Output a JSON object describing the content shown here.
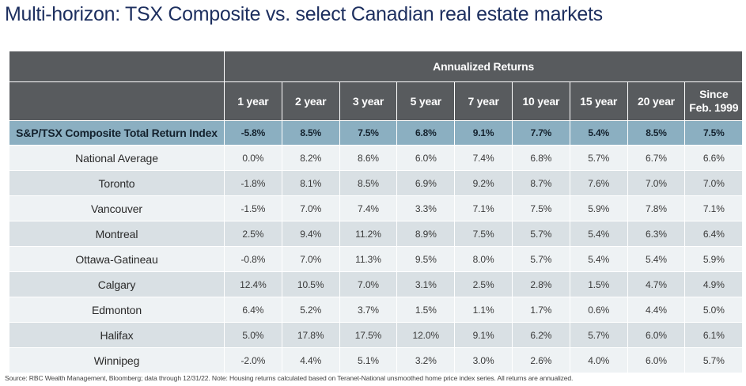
{
  "title": "Multi-horizon: TSX Composite vs. select Canadian real estate markets",
  "table": {
    "group_header": "Annualized Returns",
    "periods": [
      "1 year",
      "2 year",
      "3 year",
      "5 year",
      "7 year",
      "10 year",
      "15 year",
      "20 year",
      "Since Feb. 1999"
    ],
    "period_lines": [
      [
        "1 year"
      ],
      [
        "2 year"
      ],
      [
        "3 year"
      ],
      [
        "5 year"
      ],
      [
        "7 year"
      ],
      [
        "10 year"
      ],
      [
        "15 year"
      ],
      [
        "20 year"
      ],
      [
        "Since",
        "Feb. 1999"
      ]
    ],
    "index_row": {
      "name": "S&P/TSX Composite Total Return Index",
      "values": [
        "-5.8%",
        "8.5%",
        "7.5%",
        "6.8%",
        "9.1%",
        "7.7%",
        "5.4%",
        "8.5%",
        "7.5%"
      ]
    },
    "rows": [
      {
        "name": "National Average",
        "values": [
          "0.0%",
          "8.2%",
          "8.6%",
          "6.0%",
          "7.4%",
          "6.8%",
          "5.7%",
          "6.7%",
          "6.6%"
        ]
      },
      {
        "name": "Toronto",
        "values": [
          "-1.8%",
          "8.1%",
          "8.5%",
          "6.9%",
          "9.2%",
          "8.7%",
          "7.6%",
          "7.0%",
          "7.0%"
        ]
      },
      {
        "name": "Vancouver",
        "values": [
          "-1.5%",
          "7.0%",
          "7.4%",
          "3.3%",
          "7.1%",
          "7.5%",
          "5.9%",
          "7.8%",
          "7.1%"
        ]
      },
      {
        "name": "Montreal",
        "values": [
          "2.5%",
          "9.4%",
          "11.2%",
          "8.9%",
          "7.5%",
          "5.7%",
          "5.4%",
          "6.3%",
          "6.4%"
        ]
      },
      {
        "name": "Ottawa-Gatineau",
        "values": [
          "-0.8%",
          "7.0%",
          "11.3%",
          "9.5%",
          "8.0%",
          "5.7%",
          "5.4%",
          "5.4%",
          "5.9%"
        ]
      },
      {
        "name": "Calgary",
        "values": [
          "12.4%",
          "10.5%",
          "7.0%",
          "3.1%",
          "2.5%",
          "2.8%",
          "1.5%",
          "4.7%",
          "4.9%"
        ]
      },
      {
        "name": "Edmonton",
        "values": [
          "6.4%",
          "5.2%",
          "3.7%",
          "1.5%",
          "1.1%",
          "1.7%",
          "0.6%",
          "4.4%",
          "5.0%"
        ]
      },
      {
        "name": "Halifax",
        "values": [
          "5.0%",
          "17.8%",
          "17.5%",
          "12.0%",
          "9.1%",
          "6.2%",
          "5.7%",
          "6.0%",
          "6.1%"
        ]
      },
      {
        "name": "Winnipeg",
        "values": [
          "-2.0%",
          "4.4%",
          "5.1%",
          "3.2%",
          "3.0%",
          "2.6%",
          "4.0%",
          "6.0%",
          "5.7%"
        ]
      }
    ]
  },
  "footnote": "Source: RBC Wealth Management, Bloomberg; data through 12/31/22. Note: Housing returns calculated based on Teranet-National unsmoothed home price index series. All returns are annualized.",
  "colors": {
    "title": "#1d2f5f",
    "header_bg": "#585b5e",
    "index_row_bg": "#8bafc1",
    "row_light": "#eef2f4",
    "row_dark": "#d9e0e4"
  }
}
